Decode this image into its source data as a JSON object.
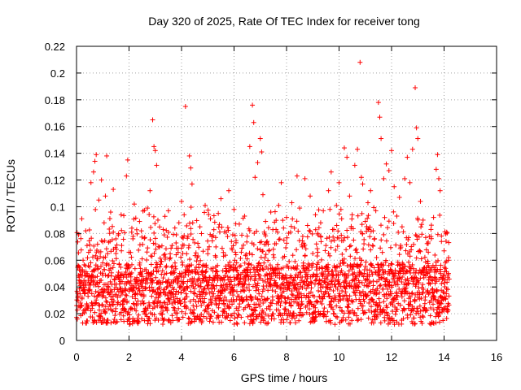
{
  "chart_data": {
    "type": "scatter",
    "title": "Day 320 of 2025, Rate Of TEC Index for receiver tong",
    "xlabel": "GPS time / hours",
    "ylabel": "ROTI / TECUs",
    "xlim": [
      0,
      16
    ],
    "ylim": [
      0,
      0.22
    ],
    "x_ticks": [
      "0",
      "2",
      "4",
      "6",
      "8",
      "10",
      "12",
      "14",
      "16"
    ],
    "y_ticks": [
      "0",
      "0.02",
      "0.04",
      "0.06",
      "0.08",
      "0.1",
      "0.12",
      "0.14",
      "0.16",
      "0.18",
      "0.2",
      "0.22"
    ],
    "grid": true,
    "marker": "+",
    "color": "#ff0000",
    "data_range_x": [
      0,
      14.2
    ],
    "series": [
      {
        "points": [
          [
            0.05,
            0.032
          ],
          [
            0.1,
            0.045
          ],
          [
            0.15,
            0.028
          ],
          [
            0.2,
            0.091
          ],
          [
            0.25,
            0.06
          ],
          [
            0.3,
            0.038
          ],
          [
            0.35,
            0.082
          ],
          [
            0.4,
            0.071
          ],
          [
            0.45,
            0.025
          ],
          [
            0.5,
            0.055
          ],
          [
            0.55,
            0.118
          ],
          [
            0.6,
            0.048
          ],
          [
            0.65,
            0.126
          ],
          [
            0.7,
            0.134
          ],
          [
            0.75,
            0.139
          ],
          [
            0.8,
            0.072
          ],
          [
            0.85,
            0.105
          ],
          [
            0.9,
            0.036
          ],
          [
            0.95,
            0.12
          ],
          [
            1.0,
            0.058
          ],
          [
            1.05,
            0.088
          ],
          [
            1.1,
            0.108
          ],
          [
            1.15,
            0.138
          ],
          [
            1.2,
            0.042
          ],
          [
            1.3,
            0.096
          ],
          [
            1.4,
            0.113
          ],
          [
            1.5,
            0.076
          ],
          [
            1.6,
            0.051
          ],
          [
            1.7,
            0.094
          ],
          [
            1.8,
            0.03
          ],
          [
            1.9,
            0.123
          ],
          [
            1.95,
            0.135
          ],
          [
            2.0,
            0.066
          ],
          [
            2.1,
            0.081
          ],
          [
            2.2,
            0.102
          ],
          [
            2.3,
            0.047
          ],
          [
            2.4,
            0.089
          ],
          [
            2.5,
            0.061
          ],
          [
            2.6,
            0.077
          ],
          [
            2.7,
            0.099
          ],
          [
            2.8,
            0.112
          ],
          [
            2.9,
            0.165
          ],
          [
            2.95,
            0.145
          ],
          [
            3.0,
            0.142
          ],
          [
            3.05,
            0.131
          ],
          [
            3.1,
            0.09
          ],
          [
            3.2,
            0.057
          ],
          [
            3.3,
            0.083
          ],
          [
            3.4,
            0.044
          ],
          [
            3.5,
            0.097
          ],
          [
            3.6,
            0.069
          ],
          [
            3.7,
            0.052
          ],
          [
            3.8,
            0.079
          ],
          [
            3.9,
            0.088
          ],
          [
            4.0,
            0.104
          ],
          [
            4.1,
            0.094
          ],
          [
            4.15,
            0.175
          ],
          [
            4.3,
            0.138
          ],
          [
            4.35,
            0.129
          ],
          [
            4.4,
            0.117
          ],
          [
            4.5,
            0.073
          ],
          [
            4.6,
            0.062
          ],
          [
            4.7,
            0.085
          ],
          [
            4.8,
            0.049
          ],
          [
            4.9,
            0.101
          ],
          [
            5.0,
            0.068
          ],
          [
            5.1,
            0.091
          ],
          [
            5.2,
            0.054
          ],
          [
            5.3,
            0.077
          ],
          [
            5.4,
            0.095
          ],
          [
            5.5,
            0.106
          ],
          [
            5.6,
            0.063
          ],
          [
            5.7,
            0.081
          ],
          [
            5.8,
            0.112
          ],
          [
            5.9,
            0.074
          ],
          [
            6.0,
            0.098
          ],
          [
            6.1,
            0.058
          ],
          [
            6.2,
            0.087
          ],
          [
            6.3,
            0.069
          ],
          [
            6.4,
            0.093
          ],
          [
            6.5,
            0.078
          ],
          [
            6.6,
            0.145
          ],
          [
            6.7,
            0.176
          ],
          [
            6.75,
            0.163
          ],
          [
            6.8,
            0.122
          ],
          [
            6.9,
            0.133
          ],
          [
            7.0,
            0.151
          ],
          [
            7.05,
            0.141
          ],
          [
            7.1,
            0.109
          ],
          [
            7.2,
            0.089
          ],
          [
            7.3,
            0.072
          ],
          [
            7.4,
            0.096
          ],
          [
            7.5,
            0.064
          ],
          [
            7.6,
            0.083
          ],
          [
            7.7,
            0.101
          ],
          [
            7.8,
            0.118
          ],
          [
            7.9,
            0.075
          ],
          [
            8.0,
            0.092
          ],
          [
            8.1,
            0.059
          ],
          [
            8.2,
            0.103
          ],
          [
            8.3,
            0.084
          ],
          [
            8.4,
            0.123
          ],
          [
            8.5,
            0.099
          ],
          [
            8.6,
            0.07
          ],
          [
            8.7,
            0.121
          ],
          [
            8.8,
            0.086
          ],
          [
            8.9,
            0.108
          ],
          [
            9.0,
            0.065
          ],
          [
            9.1,
            0.094
          ],
          [
            9.2,
            0.079
          ],
          [
            9.3,
            0.088
          ],
          [
            9.4,
            0.097
          ],
          [
            9.5,
            0.071
          ],
          [
            9.6,
            0.112
          ],
          [
            9.7,
            0.126
          ],
          [
            9.8,
            0.083
          ],
          [
            9.9,
            0.101
          ],
          [
            10.0,
            0.118
          ],
          [
            10.1,
            0.091
          ],
          [
            10.2,
            0.144
          ],
          [
            10.3,
            0.137
          ],
          [
            10.4,
            0.108
          ],
          [
            10.5,
            0.094
          ],
          [
            10.6,
            0.131
          ],
          [
            10.7,
            0.143
          ],
          [
            10.8,
            0.208
          ],
          [
            10.85,
            0.122
          ],
          [
            10.9,
            0.117
          ],
          [
            11.0,
            0.089
          ],
          [
            11.1,
            0.103
          ],
          [
            11.2,
            0.112
          ],
          [
            11.3,
            0.082
          ],
          [
            11.4,
            0.097
          ],
          [
            11.5,
            0.178
          ],
          [
            11.55,
            0.167
          ],
          [
            11.6,
            0.151
          ],
          [
            11.7,
            0.121
          ],
          [
            11.8,
            0.132
          ],
          [
            11.9,
            0.127
          ],
          [
            12.0,
            0.142
          ],
          [
            12.1,
            0.115
          ],
          [
            12.2,
            0.093
          ],
          [
            12.3,
            0.107
          ],
          [
            12.4,
            0.085
          ],
          [
            12.5,
            0.121
          ],
          [
            12.6,
            0.137
          ],
          [
            12.7,
            0.118
          ],
          [
            12.8,
            0.143
          ],
          [
            12.9,
            0.189
          ],
          [
            12.95,
            0.159
          ],
          [
            13.0,
            0.151
          ],
          [
            13.1,
            0.104
          ],
          [
            13.2,
            0.09
          ],
          [
            13.3,
            0.077
          ],
          [
            13.4,
            0.066
          ],
          [
            13.5,
            0.083
          ],
          [
            13.6,
            0.092
          ],
          [
            13.7,
            0.128
          ],
          [
            13.75,
            0.139
          ],
          [
            13.8,
            0.121
          ],
          [
            13.85,
            0.112
          ],
          [
            13.9,
            0.074
          ],
          [
            14.0,
            0.067
          ],
          [
            14.05,
            0.058
          ],
          [
            14.1,
            0.081
          ],
          [
            14.15,
            0.049
          ]
        ]
      }
    ]
  }
}
